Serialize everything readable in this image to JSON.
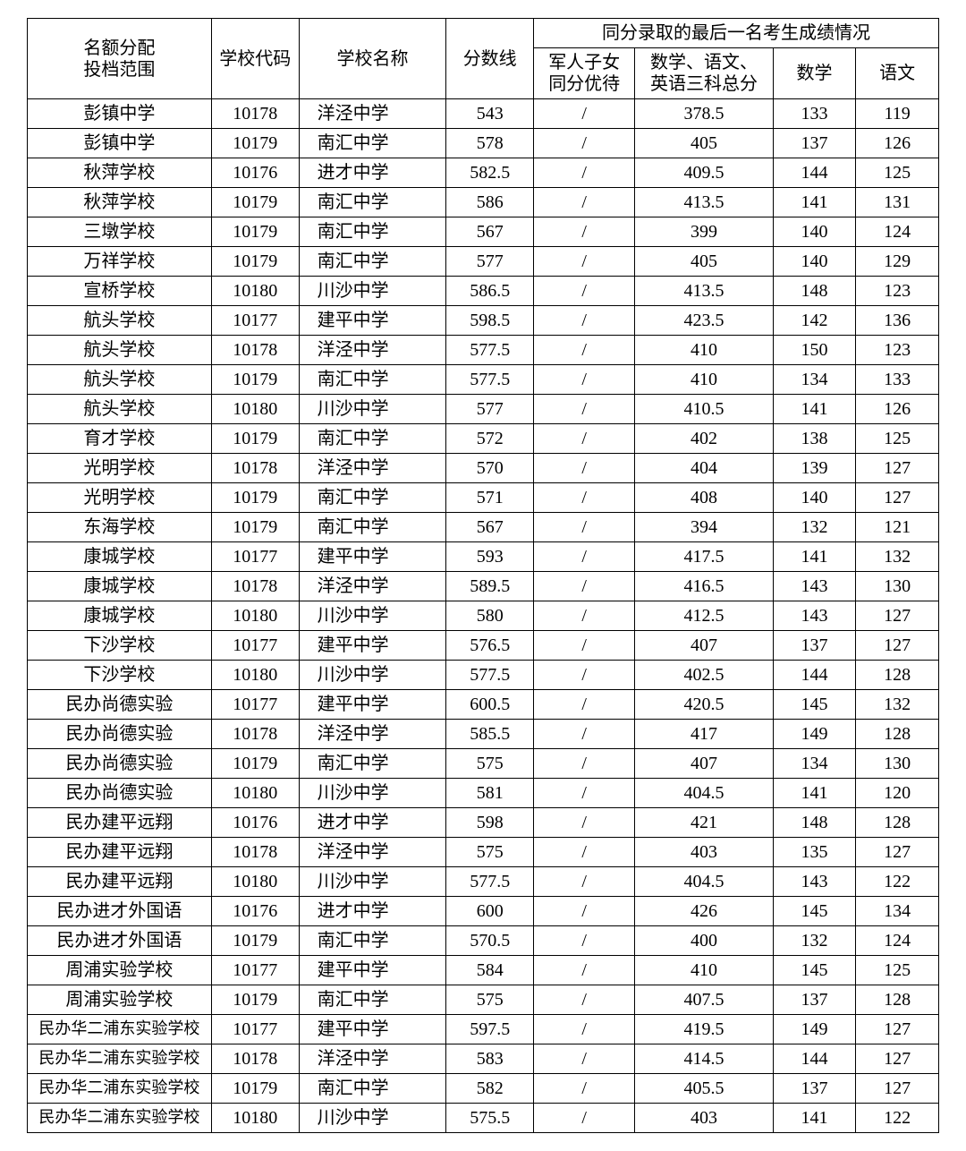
{
  "header": {
    "scope": "名额分配\n投档范围",
    "code": "学校代码",
    "name": "学校名称",
    "score": "分数线",
    "tieGroup": "同分录取的最后一名考生成绩情况",
    "tie1": "军人子女\n同分优待",
    "tie2": "数学、语文、\n英语三科总分",
    "tie3": "数学",
    "tie4": "语文"
  },
  "rows": [
    {
      "scope": "彭镇中学",
      "code": "10178",
      "name": "洋泾中学",
      "score": "543",
      "c1": "/",
      "c2": "378.5",
      "c3": "133",
      "c4": "119"
    },
    {
      "scope": "彭镇中学",
      "code": "10179",
      "name": "南汇中学",
      "score": "578",
      "c1": "/",
      "c2": "405",
      "c3": "137",
      "c4": "126"
    },
    {
      "scope": "秋萍学校",
      "code": "10176",
      "name": "进才中学",
      "score": "582.5",
      "c1": "/",
      "c2": "409.5",
      "c3": "144",
      "c4": "125"
    },
    {
      "scope": "秋萍学校",
      "code": "10179",
      "name": "南汇中学",
      "score": "586",
      "c1": "/",
      "c2": "413.5",
      "c3": "141",
      "c4": "131"
    },
    {
      "scope": "三墩学校",
      "code": "10179",
      "name": "南汇中学",
      "score": "567",
      "c1": "/",
      "c2": "399",
      "c3": "140",
      "c4": "124"
    },
    {
      "scope": "万祥学校",
      "code": "10179",
      "name": "南汇中学",
      "score": "577",
      "c1": "/",
      "c2": "405",
      "c3": "140",
      "c4": "129"
    },
    {
      "scope": "宣桥学校",
      "code": "10180",
      "name": "川沙中学",
      "score": "586.5",
      "c1": "/",
      "c2": "413.5",
      "c3": "148",
      "c4": "123"
    },
    {
      "scope": "航头学校",
      "code": "10177",
      "name": "建平中学",
      "score": "598.5",
      "c1": "/",
      "c2": "423.5",
      "c3": "142",
      "c4": "136"
    },
    {
      "scope": "航头学校",
      "code": "10178",
      "name": "洋泾中学",
      "score": "577.5",
      "c1": "/",
      "c2": "410",
      "c3": "150",
      "c4": "123"
    },
    {
      "scope": "航头学校",
      "code": "10179",
      "name": "南汇中学",
      "score": "577.5",
      "c1": "/",
      "c2": "410",
      "c3": "134",
      "c4": "133"
    },
    {
      "scope": "航头学校",
      "code": "10180",
      "name": "川沙中学",
      "score": "577",
      "c1": "/",
      "c2": "410.5",
      "c3": "141",
      "c4": "126"
    },
    {
      "scope": "育才学校",
      "code": "10179",
      "name": "南汇中学",
      "score": "572",
      "c1": "/",
      "c2": "402",
      "c3": "138",
      "c4": "125"
    },
    {
      "scope": "光明学校",
      "code": "10178",
      "name": "洋泾中学",
      "score": "570",
      "c1": "/",
      "c2": "404",
      "c3": "139",
      "c4": "127"
    },
    {
      "scope": "光明学校",
      "code": "10179",
      "name": "南汇中学",
      "score": "571",
      "c1": "/",
      "c2": "408",
      "c3": "140",
      "c4": "127"
    },
    {
      "scope": "东海学校",
      "code": "10179",
      "name": "南汇中学",
      "score": "567",
      "c1": "/",
      "c2": "394",
      "c3": "132",
      "c4": "121"
    },
    {
      "scope": "康城学校",
      "code": "10177",
      "name": "建平中学",
      "score": "593",
      "c1": "/",
      "c2": "417.5",
      "c3": "141",
      "c4": "132"
    },
    {
      "scope": "康城学校",
      "code": "10178",
      "name": "洋泾中学",
      "score": "589.5",
      "c1": "/",
      "c2": "416.5",
      "c3": "143",
      "c4": "130"
    },
    {
      "scope": "康城学校",
      "code": "10180",
      "name": "川沙中学",
      "score": "580",
      "c1": "/",
      "c2": "412.5",
      "c3": "143",
      "c4": "127"
    },
    {
      "scope": "下沙学校",
      "code": "10177",
      "name": "建平中学",
      "score": "576.5",
      "c1": "/",
      "c2": "407",
      "c3": "137",
      "c4": "127"
    },
    {
      "scope": "下沙学校",
      "code": "10180",
      "name": "川沙中学",
      "score": "577.5",
      "c1": "/",
      "c2": "402.5",
      "c3": "144",
      "c4": "128"
    },
    {
      "scope": "民办尚德实验",
      "code": "10177",
      "name": "建平中学",
      "score": "600.5",
      "c1": "/",
      "c2": "420.5",
      "c3": "145",
      "c4": "132"
    },
    {
      "scope": "民办尚德实验",
      "code": "10178",
      "name": "洋泾中学",
      "score": "585.5",
      "c1": "/",
      "c2": "417",
      "c3": "149",
      "c4": "128"
    },
    {
      "scope": "民办尚德实验",
      "code": "10179",
      "name": "南汇中学",
      "score": "575",
      "c1": "/",
      "c2": "407",
      "c3": "134",
      "c4": "130"
    },
    {
      "scope": "民办尚德实验",
      "code": "10180",
      "name": "川沙中学",
      "score": "581",
      "c1": "/",
      "c2": "404.5",
      "c3": "141",
      "c4": "120"
    },
    {
      "scope": "民办建平远翔",
      "code": "10176",
      "name": "进才中学",
      "score": "598",
      "c1": "/",
      "c2": "421",
      "c3": "148",
      "c4": "128"
    },
    {
      "scope": "民办建平远翔",
      "code": "10178",
      "name": "洋泾中学",
      "score": "575",
      "c1": "/",
      "c2": "403",
      "c3": "135",
      "c4": "127"
    },
    {
      "scope": "民办建平远翔",
      "code": "10180",
      "name": "川沙中学",
      "score": "577.5",
      "c1": "/",
      "c2": "404.5",
      "c3": "143",
      "c4": "122"
    },
    {
      "scope": "民办进才外国语",
      "code": "10176",
      "name": "进才中学",
      "score": "600",
      "c1": "/",
      "c2": "426",
      "c3": "145",
      "c4": "134"
    },
    {
      "scope": "民办进才外国语",
      "code": "10179",
      "name": "南汇中学",
      "score": "570.5",
      "c1": "/",
      "c2": "400",
      "c3": "132",
      "c4": "124"
    },
    {
      "scope": "周浦实验学校",
      "code": "10177",
      "name": "建平中学",
      "score": "584",
      "c1": "/",
      "c2": "410",
      "c3": "145",
      "c4": "125"
    },
    {
      "scope": "周浦实验学校",
      "code": "10179",
      "name": "南汇中学",
      "score": "575",
      "c1": "/",
      "c2": "407.5",
      "c3": "137",
      "c4": "128"
    },
    {
      "scope": "民办华二浦东实验学校",
      "code": "10177",
      "name": "建平中学",
      "score": "597.5",
      "c1": "/",
      "c2": "419.5",
      "c3": "149",
      "c4": "127",
      "small": true
    },
    {
      "scope": "民办华二浦东实验学校",
      "code": "10178",
      "name": "洋泾中学",
      "score": "583",
      "c1": "/",
      "c2": "414.5",
      "c3": "144",
      "c4": "127",
      "small": true
    },
    {
      "scope": "民办华二浦东实验学校",
      "code": "10179",
      "name": "南汇中学",
      "score": "582",
      "c1": "/",
      "c2": "405.5",
      "c3": "137",
      "c4": "127",
      "small": true
    },
    {
      "scope": "民办华二浦东实验学校",
      "code": "10180",
      "name": "川沙中学",
      "score": "575.5",
      "c1": "/",
      "c2": "403",
      "c3": "141",
      "c4": "122",
      "small": true
    }
  ]
}
